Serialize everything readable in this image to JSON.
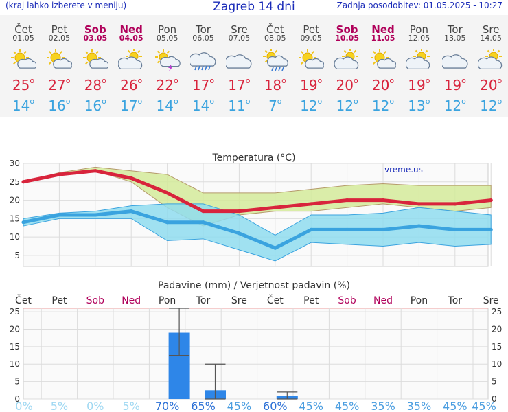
{
  "header": {
    "hint": "(kraj lahko izberete v meniju)",
    "title": "Zagreb 14 dni",
    "updated": "Zadnja posodobitev: 01.05.2025 - 10:27"
  },
  "days": [
    {
      "name": "Čet",
      "date": "01.05",
      "weekend": false,
      "icon": "sun-cloud-icon",
      "tmax": "25",
      "tmin": "14"
    },
    {
      "name": "Pet",
      "date": "02.05",
      "weekend": false,
      "icon": "sun-cloud-icon",
      "tmax": "27",
      "tmin": "16"
    },
    {
      "name": "Sob",
      "date": "03.05",
      "weekend": true,
      "icon": "sun-cloud-icon",
      "tmax": "28",
      "tmin": "16"
    },
    {
      "name": "Ned",
      "date": "04.05",
      "weekend": true,
      "icon": "cloud-sun-icon",
      "tmax": "26",
      "tmin": "17"
    },
    {
      "name": "Pon",
      "date": "05.05",
      "weekend": false,
      "icon": "sun-cloud-storm-icon",
      "tmax": "22",
      "tmin": "14"
    },
    {
      "name": "Tor",
      "date": "06.05",
      "weekend": false,
      "icon": "cloud-rain-icon",
      "tmax": "17",
      "tmin": "14"
    },
    {
      "name": "Sre",
      "date": "07.05",
      "weekend": false,
      "icon": "cloud-icon",
      "tmax": "17",
      "tmin": "11"
    },
    {
      "name": "Čet",
      "date": "08.05",
      "weekend": false,
      "icon": "sun-cloud-rain-icon",
      "tmax": "18",
      "tmin": "7"
    },
    {
      "name": "Pet",
      "date": "09.05",
      "weekend": false,
      "icon": "sun-cloud-icon",
      "tmax": "19",
      "tmin": "12"
    },
    {
      "name": "Sob",
      "date": "10.05",
      "weekend": true,
      "icon": "cloud-sun-icon",
      "tmax": "20",
      "tmin": "12"
    },
    {
      "name": "Ned",
      "date": "11.05",
      "weekend": true,
      "icon": "sun-cloud-icon",
      "tmax": "20",
      "tmin": "12"
    },
    {
      "name": "Pon",
      "date": "12.05",
      "weekend": false,
      "icon": "cloud-sun-icon",
      "tmax": "19",
      "tmin": "13"
    },
    {
      "name": "Tor",
      "date": "13.05",
      "weekend": false,
      "icon": "cloud-icon",
      "tmax": "19",
      "tmin": "12"
    },
    {
      "name": "Sre",
      "date": "14.05",
      "weekend": false,
      "icon": "cloud-sun-icon",
      "tmax": "20",
      "tmin": "12"
    }
  ],
  "colors": {
    "max": "#d8243c",
    "min": "#3aa3df",
    "weekend": "#b0005a",
    "band_max": "#d4ea9a",
    "band_min": "#8fdcee",
    "bar": "#2e86e8",
    "brand": "#1a2bb8"
  },
  "chart_data": [
    {
      "type": "line",
      "title": "Temperatura (°C)",
      "watermark": "vreme.us",
      "ylim": [
        2,
        30
      ],
      "yticks": [
        5,
        10,
        15,
        20,
        25,
        30
      ],
      "grid": true,
      "x": [
        "01.05",
        "02.05",
        "03.05",
        "04.05",
        "05.05",
        "06.05",
        "07.05",
        "08.05",
        "09.05",
        "10.05",
        "11.05",
        "12.05",
        "13.05",
        "14.05"
      ],
      "series": [
        {
          "role": "max",
          "values": [
            25,
            27,
            28,
            26,
            22,
            17,
            17,
            18,
            19,
            20,
            20,
            19,
            19,
            20
          ],
          "band_high": [
            25,
            27.5,
            29,
            28,
            27,
            22,
            22,
            22,
            23,
            24,
            24.5,
            24,
            24,
            24
          ],
          "band_low": [
            25,
            27,
            28,
            25,
            18,
            13,
            16,
            17,
            17,
            18,
            19,
            18,
            17,
            18
          ]
        },
        {
          "role": "min",
          "values": [
            14,
            16,
            16,
            17,
            14,
            14,
            11,
            7,
            12,
            12,
            12,
            13,
            12,
            12
          ],
          "band_high": [
            15,
            16.5,
            17,
            18.5,
            19,
            19,
            16,
            10.5,
            16,
            16,
            16.5,
            18,
            17,
            16
          ],
          "band_low": [
            13,
            15,
            15,
            15,
            9,
            9.5,
            6.5,
            3.5,
            8.5,
            8,
            7.5,
            8.5,
            7.5,
            8
          ]
        }
      ]
    },
    {
      "type": "bar",
      "title": "Padavine (mm) / Verjetnost padavin (%)",
      "ylim": [
        0,
        26
      ],
      "yticks": [
        0,
        5,
        10,
        15,
        20,
        25
      ],
      "categories": [
        "Čet",
        "Pet",
        "Sob",
        "Ned",
        "Pon",
        "Tor",
        "Sre",
        "Čet",
        "Pet",
        "Sob",
        "Ned",
        "Pon",
        "Tor",
        "Sre"
      ],
      "weekend": [
        false,
        false,
        true,
        true,
        false,
        false,
        false,
        false,
        false,
        true,
        true,
        false,
        false,
        false
      ],
      "values": [
        0,
        0,
        0,
        0,
        19,
        2.5,
        0,
        0.8,
        0,
        0,
        0,
        0,
        0,
        0
      ],
      "error_low": [
        null,
        null,
        null,
        null,
        12.5,
        0,
        null,
        0,
        null,
        null,
        null,
        null,
        null,
        null
      ],
      "error_high": [
        null,
        null,
        null,
        null,
        26,
        10,
        null,
        2,
        null,
        null,
        null,
        null,
        null,
        null
      ],
      "probability": [
        "0%",
        "5%",
        "0%",
        "5%",
        "70%",
        "65%",
        "45%",
        "60%",
        "45%",
        "45%",
        "35%",
        "35%",
        "45%",
        "45%"
      ]
    }
  ]
}
